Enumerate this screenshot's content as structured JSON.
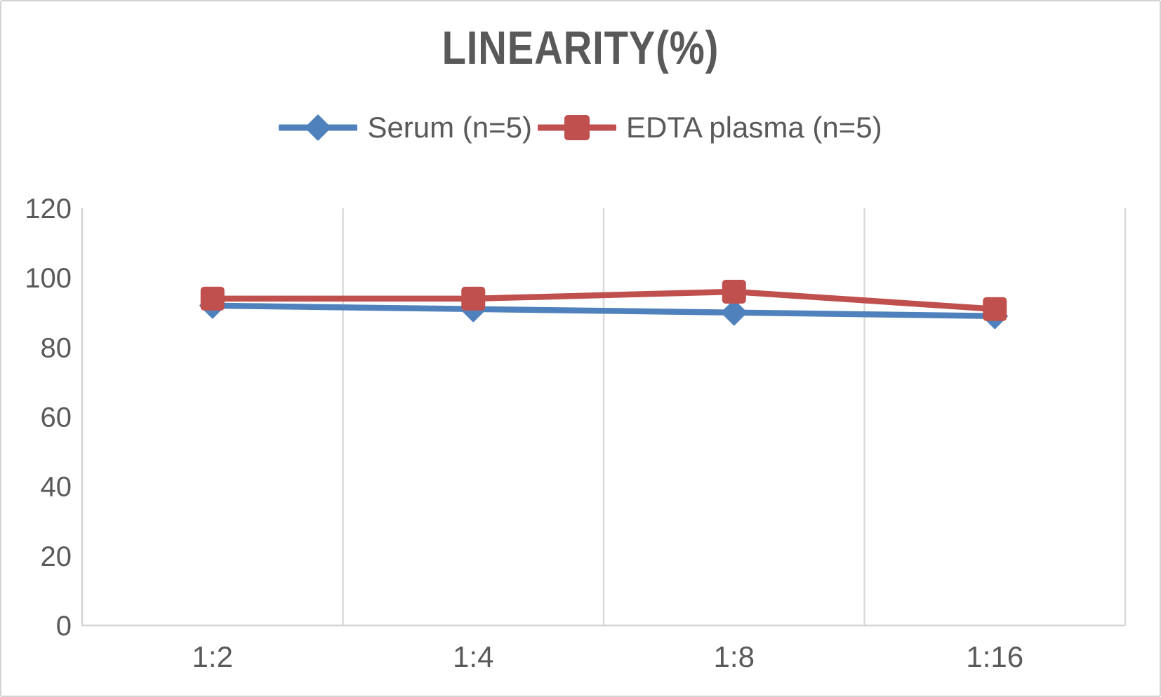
{
  "chart_data": {
    "type": "line",
    "title": "LINEARITY(%)",
    "categories": [
      "1:2",
      "1:4",
      "1:8",
      "1:16"
    ],
    "series": [
      {
        "name": "Serum (n=5)",
        "values": [
          92,
          91,
          90,
          89
        ],
        "color": "#4F81BD",
        "marker": "diamond"
      },
      {
        "name": "EDTA plasma (n=5)",
        "values": [
          94,
          94,
          96,
          91
        ],
        "color": "#C0504D",
        "marker": "square"
      }
    ],
    "xlabel": "",
    "ylabel": "",
    "ylim": [
      0,
      120
    ],
    "yticks": [
      0,
      20,
      40,
      60,
      80,
      100,
      120
    ],
    "grid": "vertical-only",
    "legend_position": "top-center",
    "axis_text_color": "#595959",
    "gridline_color": "#d9d9d9",
    "axis_line_color": "#d2d2d2"
  }
}
